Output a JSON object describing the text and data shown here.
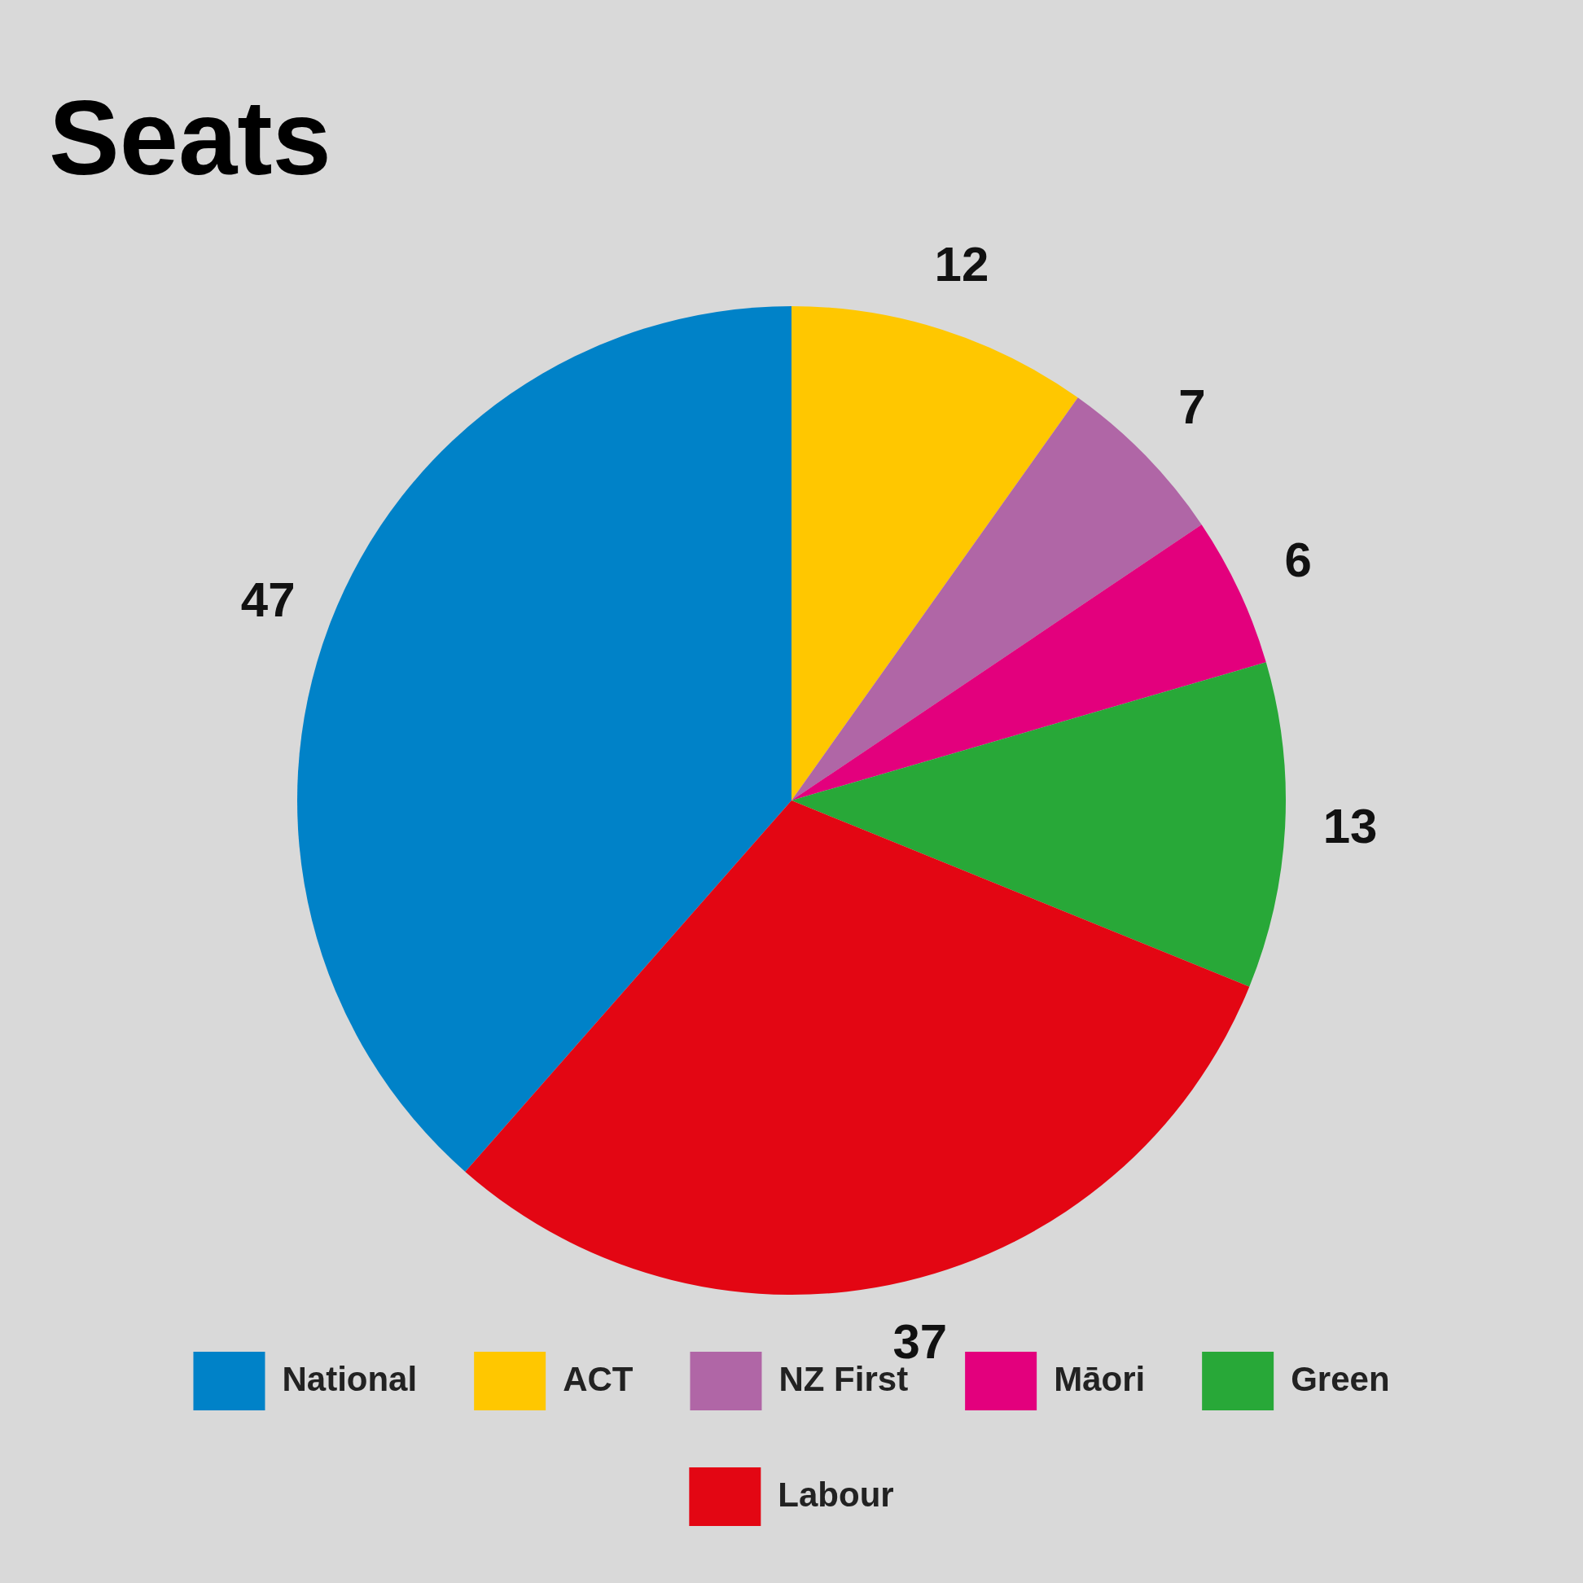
{
  "chart_data": {
    "type": "pie",
    "title": "Seats",
    "categories": [
      "National",
      "ACT",
      "NZ First",
      "Māori",
      "Green",
      "Labour"
    ],
    "values": [
      47,
      12,
      7,
      6,
      13,
      37
    ],
    "colors": [
      "#0082c8",
      "#ffc700",
      "#b066a6",
      "#e3007d",
      "#28a838",
      "#e30613"
    ],
    "data_labels": true,
    "legend": "bottom"
  }
}
